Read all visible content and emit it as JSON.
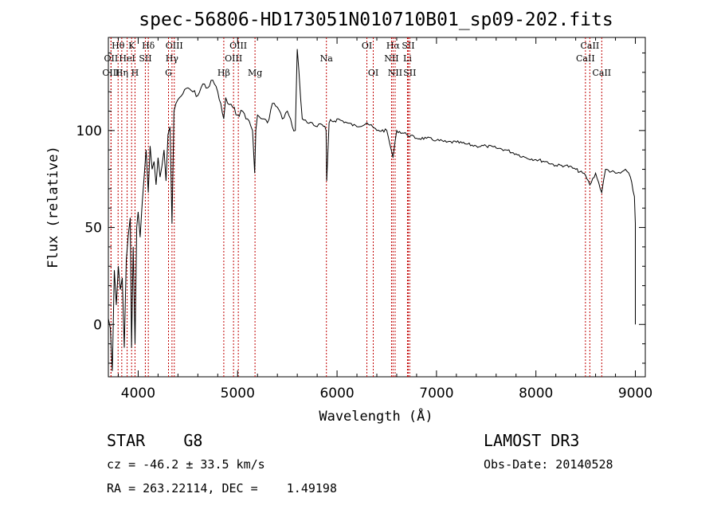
{
  "chart_data": {
    "type": "line",
    "title": "spec-56806-HD173051N010710B01_sp09-202.fits",
    "xlabel": "Wavelength (Å)",
    "ylabel": "Flux (relative)",
    "xlim": [
      3700,
      9100
    ],
    "ylim": [
      -27,
      148
    ],
    "x_ticks": [
      4000,
      5000,
      6000,
      7000,
      8000,
      9000
    ],
    "x_tick_labels": [
      "4000",
      "5000",
      "6000",
      "7000",
      "8000",
      "9000"
    ],
    "y_ticks": [
      0,
      50,
      100
    ],
    "y_tick_labels": [
      "0",
      "50",
      "100"
    ],
    "series": [
      {
        "name": "flux",
        "x": [
          3700,
          3720,
          3740,
          3760,
          3780,
          3800,
          3820,
          3840,
          3860,
          3880,
          3900,
          3920,
          3933,
          3950,
          3968,
          3985,
          4000,
          4020,
          4040,
          4060,
          4080,
          4101,
          4120,
          4140,
          4160,
          4180,
          4200,
          4220,
          4240,
          4260,
          4280,
          4300,
          4320,
          4340,
          4360,
          4380,
          4400,
          4450,
          4500,
          4550,
          4600,
          4650,
          4700,
          4750,
          4800,
          4861,
          4880,
          4900,
          4950,
          5000,
          5050,
          5100,
          5150,
          5172,
          5183,
          5200,
          5250,
          5300,
          5350,
          5400,
          5450,
          5500,
          5550,
          5580,
          5600,
          5650,
          5700,
          5750,
          5800,
          5850,
          5890,
          5896,
          5920,
          6000,
          6100,
          6200,
          6300,
          6400,
          6500,
          6563,
          6600,
          6700,
          6800,
          6900,
          7000,
          7100,
          7200,
          7300,
          7400,
          7500,
          7600,
          7700,
          7800,
          7900,
          8000,
          8100,
          8200,
          8300,
          8400,
          8498,
          8542,
          8600,
          8662,
          8700,
          8800,
          8850,
          8900,
          8950,
          8990,
          9000,
          9000
        ],
        "values": [
          3,
          -2,
          -24,
          28,
          10,
          30,
          18,
          24,
          -12,
          33,
          46,
          55,
          -12,
          40,
          -10,
          50,
          58,
          45,
          62,
          76,
          90,
          68,
          92,
          80,
          84,
          72,
          86,
          76,
          82,
          90,
          74,
          98,
          102,
          52,
          110,
          114,
          116,
          119,
          122,
          120,
          118,
          124,
          122,
          126,
          120,
          106,
          117,
          114,
          112,
          108,
          110,
          106,
          100,
          78,
          100,
          108,
          106,
          104,
          114,
          112,
          106,
          110,
          102,
          100,
          142,
          106,
          104,
          104,
          102,
          103,
          100,
          74,
          104,
          106,
          104,
          102,
          104,
          100,
          100,
          86,
          100,
          98,
          96,
          96,
          95,
          94,
          94,
          93,
          92,
          92,
          91,
          90,
          88,
          86,
          85,
          84,
          82,
          82,
          80,
          77,
          72,
          78,
          68,
          80,
          78,
          78,
          80,
          76,
          66,
          52,
          0
        ]
      }
    ],
    "spectral_lines": [
      {
        "label": "Hθ",
        "wavelength": 3798,
        "row": 1
      },
      {
        "label": "OII",
        "wavelength": 3727,
        "row": 2
      },
      {
        "label": "OIII",
        "wavelength": 3727,
        "row": 3
      },
      {
        "label": "K",
        "wavelength": 3934,
        "row": 1
      },
      {
        "label": "HeI",
        "wavelength": 3889,
        "row": 2
      },
      {
        "label": "Hη",
        "wavelength": 3835,
        "row": 3
      },
      {
        "label": "Hδ",
        "wavelength": 4102,
        "row": 1
      },
      {
        "label": "SII",
        "wavelength": 4072,
        "row": 2
      },
      {
        "label": "H",
        "wavelength": 3968,
        "row": 3
      },
      {
        "label": "OIII",
        "wavelength": 4363,
        "row": 1
      },
      {
        "label": "Hγ",
        "wavelength": 4340,
        "row": 2
      },
      {
        "label": "G",
        "wavelength": 4305,
        "row": 3
      },
      {
        "label": "OIII",
        "wavelength": 5007,
        "row": 1
      },
      {
        "label": "OIII",
        "wavelength": 4959,
        "row": 2
      },
      {
        "label": "Hβ",
        "wavelength": 4861,
        "row": 3
      },
      {
        "label": "Mg",
        "wavelength": 5175,
        "row": 3
      },
      {
        "label": "Na",
        "wavelength": 5893,
        "row": 2
      },
      {
        "label": "OI",
        "wavelength": 6300,
        "row": 1
      },
      {
        "label": "OI",
        "wavelength": 6364,
        "row": 3
      },
      {
        "label": "Hα",
        "wavelength": 6563,
        "row": 1
      },
      {
        "label": "SII",
        "wavelength": 6716,
        "row": 1
      },
      {
        "label": "NII",
        "wavelength": 6548,
        "row": 2
      },
      {
        "label": "Li",
        "wavelength": 6708,
        "row": 2
      },
      {
        "label": "NII",
        "wavelength": 6584,
        "row": 3
      },
      {
        "label": "SII",
        "wavelength": 6731,
        "row": 3
      },
      {
        "label": "CaII",
        "wavelength": 8542,
        "row": 1
      },
      {
        "label": "CaII",
        "wavelength": 8498,
        "row": 2
      },
      {
        "label": "CaII",
        "wavelength": 8662,
        "row": 3
      }
    ]
  },
  "info": {
    "class_text": "STAR    G8",
    "survey": "LAMOST DR3",
    "cz": "cz = -46.2 ± 33.5 km/s",
    "obs_date": "Obs-Date: 20140528",
    "radec": "RA = 263.22114, DEC =    1.49198"
  }
}
